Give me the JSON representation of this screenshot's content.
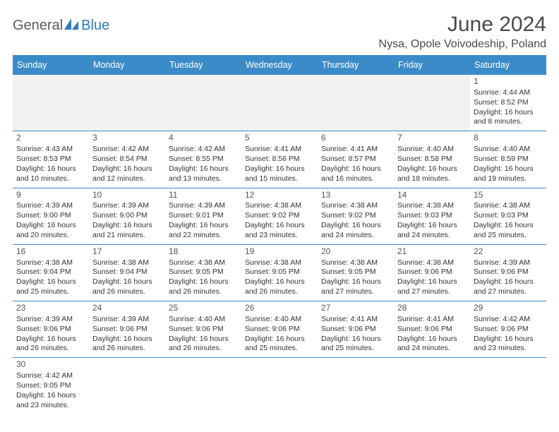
{
  "logo": {
    "part1": "General",
    "part2": "Blue"
  },
  "title": "June 2024",
  "location": "Nysa, Opole Voivodeship, Poland",
  "day_headers": [
    "Sunday",
    "Monday",
    "Tuesday",
    "Wednesday",
    "Thursday",
    "Friday",
    "Saturday"
  ],
  "header_bg": "#3b8bc9",
  "header_fg": "#ffffff",
  "blank_bg": "#f1f1f1",
  "cell_border": "#3b8bc9",
  "weeks": [
    [
      null,
      null,
      null,
      null,
      null,
      null,
      {
        "n": "1",
        "sr": "4:44 AM",
        "ss": "8:52 PM",
        "dl": "16 hours and 8 minutes."
      }
    ],
    [
      {
        "n": "2",
        "sr": "4:43 AM",
        "ss": "8:53 PM",
        "dl": "16 hours and 10 minutes."
      },
      {
        "n": "3",
        "sr": "4:42 AM",
        "ss": "8:54 PM",
        "dl": "16 hours and 12 minutes."
      },
      {
        "n": "4",
        "sr": "4:42 AM",
        "ss": "8:55 PM",
        "dl": "16 hours and 13 minutes."
      },
      {
        "n": "5",
        "sr": "4:41 AM",
        "ss": "8:56 PM",
        "dl": "16 hours and 15 minutes."
      },
      {
        "n": "6",
        "sr": "4:41 AM",
        "ss": "8:57 PM",
        "dl": "16 hours and 16 minutes."
      },
      {
        "n": "7",
        "sr": "4:40 AM",
        "ss": "8:58 PM",
        "dl": "16 hours and 18 minutes."
      },
      {
        "n": "8",
        "sr": "4:40 AM",
        "ss": "8:59 PM",
        "dl": "16 hours and 19 minutes."
      }
    ],
    [
      {
        "n": "9",
        "sr": "4:39 AM",
        "ss": "9:00 PM",
        "dl": "16 hours and 20 minutes."
      },
      {
        "n": "10",
        "sr": "4:39 AM",
        "ss": "9:00 PM",
        "dl": "16 hours and 21 minutes."
      },
      {
        "n": "11",
        "sr": "4:39 AM",
        "ss": "9:01 PM",
        "dl": "16 hours and 22 minutes."
      },
      {
        "n": "12",
        "sr": "4:38 AM",
        "ss": "9:02 PM",
        "dl": "16 hours and 23 minutes."
      },
      {
        "n": "13",
        "sr": "4:38 AM",
        "ss": "9:02 PM",
        "dl": "16 hours and 24 minutes."
      },
      {
        "n": "14",
        "sr": "4:38 AM",
        "ss": "9:03 PM",
        "dl": "16 hours and 24 minutes."
      },
      {
        "n": "15",
        "sr": "4:38 AM",
        "ss": "9:03 PM",
        "dl": "16 hours and 25 minutes."
      }
    ],
    [
      {
        "n": "16",
        "sr": "4:38 AM",
        "ss": "9:04 PM",
        "dl": "16 hours and 25 minutes."
      },
      {
        "n": "17",
        "sr": "4:38 AM",
        "ss": "9:04 PM",
        "dl": "16 hours and 26 minutes."
      },
      {
        "n": "18",
        "sr": "4:38 AM",
        "ss": "9:05 PM",
        "dl": "16 hours and 26 minutes."
      },
      {
        "n": "19",
        "sr": "4:38 AM",
        "ss": "9:05 PM",
        "dl": "16 hours and 26 minutes."
      },
      {
        "n": "20",
        "sr": "4:38 AM",
        "ss": "9:05 PM",
        "dl": "16 hours and 27 minutes."
      },
      {
        "n": "21",
        "sr": "4:38 AM",
        "ss": "9:06 PM",
        "dl": "16 hours and 27 minutes."
      },
      {
        "n": "22",
        "sr": "4:39 AM",
        "ss": "9:06 PM",
        "dl": "16 hours and 27 minutes."
      }
    ],
    [
      {
        "n": "23",
        "sr": "4:39 AM",
        "ss": "9:06 PM",
        "dl": "16 hours and 26 minutes."
      },
      {
        "n": "24",
        "sr": "4:39 AM",
        "ss": "9:06 PM",
        "dl": "16 hours and 26 minutes."
      },
      {
        "n": "25",
        "sr": "4:40 AM",
        "ss": "9:06 PM",
        "dl": "16 hours and 26 minutes."
      },
      {
        "n": "26",
        "sr": "4:40 AM",
        "ss": "9:06 PM",
        "dl": "16 hours and 25 minutes."
      },
      {
        "n": "27",
        "sr": "4:41 AM",
        "ss": "9:06 PM",
        "dl": "16 hours and 25 minutes."
      },
      {
        "n": "28",
        "sr": "4:41 AM",
        "ss": "9:06 PM",
        "dl": "16 hours and 24 minutes."
      },
      {
        "n": "29",
        "sr": "4:42 AM",
        "ss": "9:06 PM",
        "dl": "16 hours and 23 minutes."
      }
    ],
    [
      {
        "n": "30",
        "sr": "4:42 AM",
        "ss": "9:05 PM",
        "dl": "16 hours and 23 minutes."
      },
      null,
      null,
      null,
      null,
      null,
      null
    ]
  ],
  "labels": {
    "sunrise": "Sunrise: ",
    "sunset": "Sunset: ",
    "daylight": "Daylight: "
  }
}
